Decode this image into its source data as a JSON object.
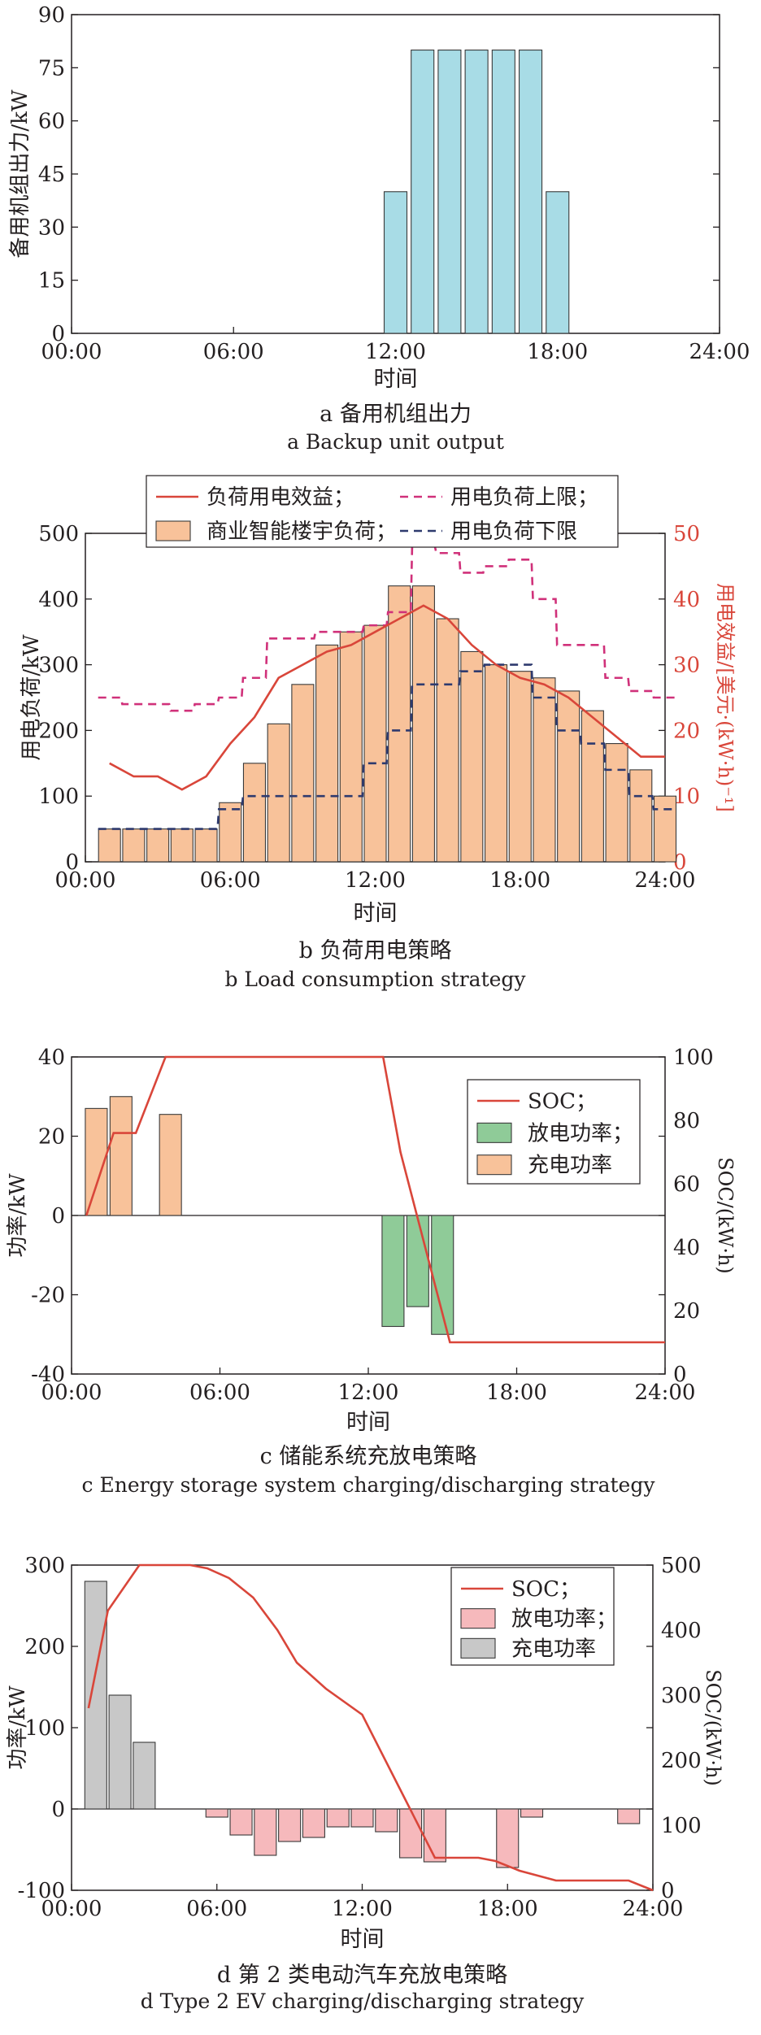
{
  "chart_data": [
    {
      "id": "a",
      "type": "bar",
      "x_ticks": [
        "00:00",
        "06:00",
        "12:00",
        "18:00",
        "24:00"
      ],
      "xlabel": "时间",
      "ylabel": "备用机组出力/kW",
      "ylim": [
        0,
        90
      ],
      "y_ticks": [
        0,
        15,
        30,
        45,
        60,
        75,
        90
      ],
      "xlim": [
        0,
        24
      ],
      "series": [
        {
          "kind": "bar",
          "color": "#a8dce6",
          "x": [
            12,
            13,
            14,
            15,
            16,
            17,
            18
          ],
          "values": [
            40,
            80,
            80,
            80,
            80,
            80,
            40
          ]
        }
      ],
      "caption_cn": "a 备用机组出力",
      "caption_en": "a Backup unit output"
    },
    {
      "id": "b",
      "type": "bar",
      "x_ticks": [
        "00:00",
        "06:00",
        "12:00",
        "18:00",
        "24:00"
      ],
      "xlabel": "时间",
      "ylabel": "用电负荷/kW",
      "ylabel_right": "用电效益/[美元·(kW·h)⁻¹]",
      "ylim": [
        0,
        500
      ],
      "y_ticks": [
        0,
        100,
        200,
        300,
        400,
        500
      ],
      "ylim_right": [
        0,
        50
      ],
      "y_ticks_right": [
        0,
        10,
        20,
        30,
        40,
        50
      ],
      "xlim": [
        0,
        24
      ],
      "legend": [
        "负荷用电效益；",
        "用电负荷上限；",
        "商业智能楼宇负荷；",
        "用电负荷下限"
      ],
      "legend_placement": "top-center",
      "series": [
        {
          "name": "商业智能楼宇负荷；",
          "kind": "bar",
          "color": "#f8c29a",
          "x": [
            1,
            2,
            3,
            4,
            5,
            6,
            7,
            8,
            9,
            10,
            11,
            12,
            13,
            14,
            15,
            16,
            17,
            18,
            19,
            20,
            21,
            22,
            23,
            24
          ],
          "values": [
            50,
            50,
            50,
            50,
            50,
            90,
            150,
            210,
            270,
            330,
            350,
            360,
            420,
            420,
            370,
            320,
            300,
            290,
            280,
            260,
            230,
            180,
            140,
            100
          ]
        },
        {
          "name": "用电负荷上限；",
          "kind": "step",
          "color": "#d0317a",
          "dash": "10,7",
          "x": [
            1,
            2,
            3,
            4,
            5,
            6,
            7,
            8,
            9,
            10,
            11,
            12,
            13,
            14,
            15,
            16,
            17,
            18,
            19,
            20,
            21,
            22,
            23,
            24
          ],
          "values": [
            250,
            240,
            240,
            230,
            240,
            250,
            280,
            340,
            340,
            350,
            350,
            360,
            380,
            480,
            470,
            440,
            450,
            460,
            400,
            330,
            330,
            280,
            260,
            250
          ]
        },
        {
          "name": "用电负荷下限",
          "kind": "step",
          "color": "#2e3a6e",
          "dash": "10,7",
          "x": [
            1,
            2,
            3,
            4,
            5,
            6,
            7,
            8,
            9,
            10,
            11,
            12,
            13,
            14,
            15,
            16,
            17,
            18,
            19,
            20,
            21,
            22,
            23,
            24
          ],
          "values": [
            50,
            50,
            50,
            50,
            50,
            80,
            100,
            100,
            100,
            100,
            100,
            150,
            200,
            270,
            270,
            290,
            300,
            300,
            250,
            200,
            180,
            140,
            100,
            80
          ]
        },
        {
          "name": "负荷用电效益；",
          "kind": "line",
          "axis": "right",
          "color": "#d9463a",
          "x": [
            1,
            2,
            3,
            4,
            5,
            6,
            7,
            8,
            9,
            10,
            11,
            12,
            13,
            14,
            15,
            16,
            17,
            18,
            19,
            20,
            21,
            22,
            23,
            24
          ],
          "values": [
            15,
            13,
            13,
            11,
            13,
            18,
            22,
            28,
            30,
            32,
            33,
            35,
            37,
            39,
            37,
            33,
            30,
            28,
            27,
            25,
            22,
            19,
            16,
            16
          ]
        }
      ],
      "caption_cn": "b 负荷用电策略",
      "caption_en": "b Load consumption strategy"
    },
    {
      "id": "c",
      "type": "bar",
      "x_ticks": [
        "00:00",
        "06:00",
        "12:00",
        "18:00",
        "24:00"
      ],
      "xlabel": "时间",
      "ylabel": "功率/kW",
      "ylabel_right": "SOC/(kW·h)",
      "ylim": [
        -40,
        40
      ],
      "y_ticks": [
        -40,
        -20,
        0,
        20,
        40
      ],
      "ylim_right": [
        0,
        100
      ],
      "y_ticks_right": [
        0,
        20,
        40,
        60,
        80,
        100
      ],
      "xlim": [
        0,
        24
      ],
      "legend": [
        "SOC；",
        "放电功率；",
        "充电功率"
      ],
      "legend_placement": "top-right",
      "series": [
        {
          "name": "充电功率",
          "kind": "bar",
          "color": "#f8c29a",
          "x": [
            1,
            2,
            4
          ],
          "values": [
            27,
            30,
            25.5
          ]
        },
        {
          "name": "放电功率；",
          "kind": "bar",
          "color": "#8fcb98",
          "x": [
            13,
            14,
            15
          ],
          "values": [
            -28,
            -23,
            -30
          ]
        },
        {
          "name": "SOC；",
          "kind": "line",
          "axis": "right",
          "color": "#d9463a",
          "x": [
            0.6,
            1.7,
            2.6,
            3.8,
            4.3,
            12.6,
            13.3,
            14.3,
            15.3,
            24
          ],
          "values": [
            50,
            76,
            76,
            100,
            100,
            100,
            70,
            40,
            10,
            10
          ]
        }
      ],
      "caption_cn": "c 储能系统充放电策略",
      "caption_en": "c Energy storage system charging/discharging strategy"
    },
    {
      "id": "d",
      "type": "bar",
      "x_ticks": [
        "00:00",
        "06:00",
        "12:00",
        "18:00",
        "24:00"
      ],
      "xlabel": "时间",
      "ylabel": "功率/kW",
      "ylabel_right": "SOC/(kW·h)",
      "ylim": [
        -100,
        300
      ],
      "y_ticks": [
        -100,
        0,
        100,
        200,
        300
      ],
      "ylim_right": [
        0,
        500
      ],
      "y_ticks_right": [
        0,
        100,
        200,
        300,
        400,
        500
      ],
      "xlim": [
        0,
        24
      ],
      "legend": [
        "SOC；",
        "放电功率；",
        "充电功率"
      ],
      "legend_placement": "top-right",
      "series": [
        {
          "name": "充电功率",
          "kind": "bar",
          "color": "#c8c8c8",
          "x": [
            1,
            2,
            3
          ],
          "values": [
            280,
            140,
            82
          ]
        },
        {
          "name": "放电功率；",
          "kind": "bar",
          "color": "#f6b9bc",
          "x": [
            6,
            7,
            8,
            9,
            10,
            11,
            12,
            13,
            14,
            15,
            18,
            19,
            23
          ],
          "values": [
            -10,
            -32,
            -57,
            -40,
            -35,
            -22,
            -22,
            -28,
            -60,
            -65,
            -72,
            -10,
            -18
          ]
        },
        {
          "name": "SOC；",
          "kind": "line",
          "axis": "right",
          "color": "#d9463a",
          "x": [
            0.7,
            1.5,
            2.8,
            4.9,
            5.6,
            6.5,
            7.5,
            8.5,
            9.3,
            10.5,
            12,
            13.5,
            15,
            16.8,
            17.5,
            18.5,
            20,
            23,
            24
          ],
          "values": [
            280,
            430,
            500,
            500,
            495,
            480,
            450,
            400,
            350,
            310,
            270,
            160,
            50,
            50,
            45,
            30,
            15,
            15,
            0
          ]
        }
      ],
      "caption_cn": "d 第 2 类电动汽车充放电策略",
      "caption_en": "d Type 2 EV charging/discharging strategy"
    }
  ]
}
